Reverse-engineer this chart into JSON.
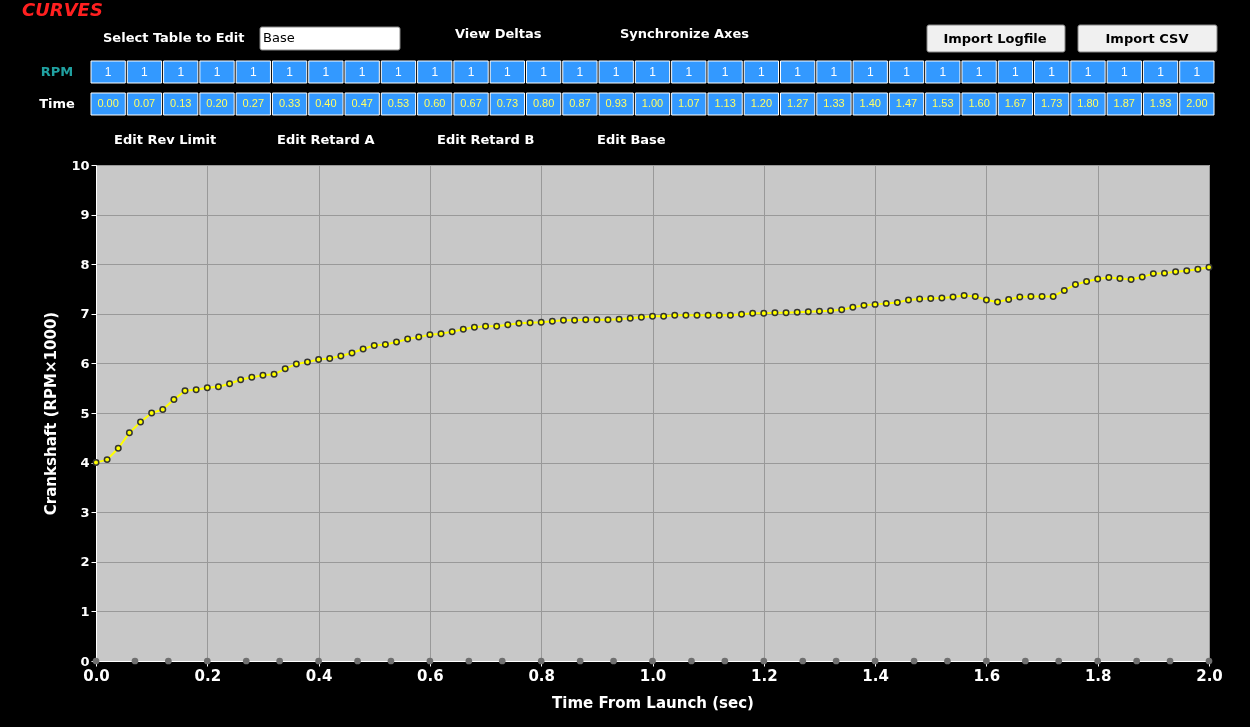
{
  "chart_data": {
    "type": "line",
    "title": "CURVES",
    "xlabel": "Time From Launch (sec)",
    "ylabel": "Crankshaft (RPM×1000)",
    "annotations": [
      "Select Table to Edit",
      "Base",
      "View Deltas",
      "Synchronize Axes",
      "Import Logfile",
      "Import CSV",
      "RPM",
      "Time",
      "Edit Rev Limit",
      "Edit Retard A",
      "Edit Retard B",
      "Edit Base",
      "1",
      "1",
      "1",
      "1",
      "1",
      "1",
      "1",
      "1",
      "1",
      "1",
      "1",
      "1",
      "1",
      "1",
      "1",
      "1",
      "1",
      "1",
      "1",
      "1",
      "1",
      "1",
      "1",
      "1",
      "1",
      "1",
      "1",
      "1",
      "1",
      "1",
      "1",
      "0.00",
      "0.07",
      "0.13",
      "0.20",
      "0.27",
      "0.33",
      "0.40",
      "0.47",
      "0.53",
      "0.60",
      "0.67",
      "0.73",
      "0.80",
      "0.87",
      "0.93",
      "1.00",
      "1.07",
      "1.13",
      "1.20",
      "1.27",
      "1.33",
      "1.40",
      "1.47",
      "1.53",
      "1.60",
      "1.67",
      "1.73",
      "1.80",
      "1.87",
      "1.93",
      "2.00"
    ],
    "xlim": [
      0,
      2
    ],
    "xticks": [
      {
        "value": 0,
        "label": "0.0"
      },
      {
        "value": 0.2,
        "label": "0.2"
      },
      {
        "value": 0.4,
        "label": "0.4"
      },
      {
        "value": 0.6,
        "label": "0.6"
      },
      {
        "value": 0.8,
        "label": "0.8"
      },
      {
        "value": 1,
        "label": "1.0"
      },
      {
        "value": 1.2,
        "label": "1.2"
      },
      {
        "value": 1.4,
        "label": "1.4"
      },
      {
        "value": 1.6,
        "label": "1.6"
      },
      {
        "value": 1.8,
        "label": "1.8"
      },
      {
        "value": 2,
        "label": "2.0"
      }
    ],
    "ylim": [
      0,
      10
    ],
    "yticks": [
      0,
      1,
      2,
      3,
      4,
      5,
      6,
      7,
      8,
      9,
      10
    ],
    "grid": true,
    "legend": false,
    "marker": "circle",
    "line_style": "solid",
    "series": [
      {
        "color": "#ffff00",
        "x": [
          0,
          0.02,
          0.04,
          0.06,
          0.08,
          0.1,
          0.12,
          0.14,
          0.16,
          0.18,
          0.2,
          0.22,
          0.24,
          0.26,
          0.28,
          0.3,
          0.32,
          0.34,
          0.36,
          0.38,
          0.4,
          0.42,
          0.44,
          0.46,
          0.48,
          0.5,
          0.52,
          0.54,
          0.56,
          0.58,
          0.6,
          0.62,
          0.64,
          0.66,
          0.68,
          0.7,
          0.72,
          0.74,
          0.76,
          0.78,
          0.8,
          0.82,
          0.84,
          0.86,
          0.88,
          0.9,
          0.92,
          0.94,
          0.96,
          0.98,
          1,
          1.02,
          1.04,
          1.06,
          1.08,
          1.1,
          1.12,
          1.14,
          1.16,
          1.18,
          1.2,
          1.22,
          1.24,
          1.26,
          1.28,
          1.3,
          1.32,
          1.34,
          1.36,
          1.38,
          1.4,
          1.42,
          1.44,
          1.46,
          1.48,
          1.5,
          1.52,
          1.54,
          1.56,
          1.58,
          1.6,
          1.62,
          1.64,
          1.66,
          1.68,
          1.7,
          1.72,
          1.74,
          1.76,
          1.78,
          1.8,
          1.82,
          1.84,
          1.86,
          1.88,
          1.9,
          1.92,
          1.94,
          1.96,
          1.98,
          2
        ],
        "values": [
          4.0,
          4.06,
          4.29,
          4.6,
          4.82,
          5.0,
          5.07,
          5.27,
          5.45,
          5.47,
          5.51,
          5.53,
          5.59,
          5.67,
          5.72,
          5.76,
          5.78,
          5.89,
          5.99,
          6.03,
          6.08,
          6.1,
          6.15,
          6.21,
          6.29,
          6.36,
          6.38,
          6.43,
          6.49,
          6.53,
          6.58,
          6.6,
          6.64,
          6.69,
          6.73,
          6.75,
          6.75,
          6.78,
          6.81,
          6.82,
          6.83,
          6.85,
          6.87,
          6.87,
          6.88,
          6.88,
          6.88,
          6.89,
          6.91,
          6.93,
          6.95,
          6.95,
          6.97,
          6.97,
          6.97,
          6.97,
          6.97,
          6.97,
          6.99,
          7.01,
          7.01,
          7.02,
          7.02,
          7.03,
          7.04,
          7.05,
          7.06,
          7.08,
          7.13,
          7.17,
          7.19,
          7.21,
          7.23,
          7.28,
          7.3,
          7.31,
          7.32,
          7.34,
          7.37,
          7.35,
          7.28,
          7.24,
          7.29,
          7.34,
          7.35,
          7.35,
          7.35,
          7.47,
          7.59,
          7.65,
          7.7,
          7.73,
          7.71,
          7.69,
          7.74,
          7.81,
          7.82,
          7.85,
          7.87,
          7.9,
          7.94
        ]
      },
      {
        "type": "scatter",
        "color": "#707070",
        "x": [
          0.0,
          0.07,
          0.13,
          0.2,
          0.27,
          0.33,
          0.4,
          0.47,
          0.53,
          0.6,
          0.67,
          0.73,
          0.8,
          0.87,
          0.93,
          1.0,
          1.07,
          1.13,
          1.2,
          1.27,
          1.33,
          1.4,
          1.47,
          1.53,
          1.6,
          1.67,
          1.73,
          1.8,
          1.87,
          1.93,
          2.0
        ],
        "values": [
          0,
          0,
          0,
          0,
          0,
          0,
          0,
          0,
          0,
          0,
          0,
          0,
          0,
          0,
          0,
          0,
          0,
          0,
          0,
          0,
          0,
          0,
          0,
          0,
          0,
          0,
          0,
          0,
          0,
          0,
          0
        ]
      }
    ]
  }
}
